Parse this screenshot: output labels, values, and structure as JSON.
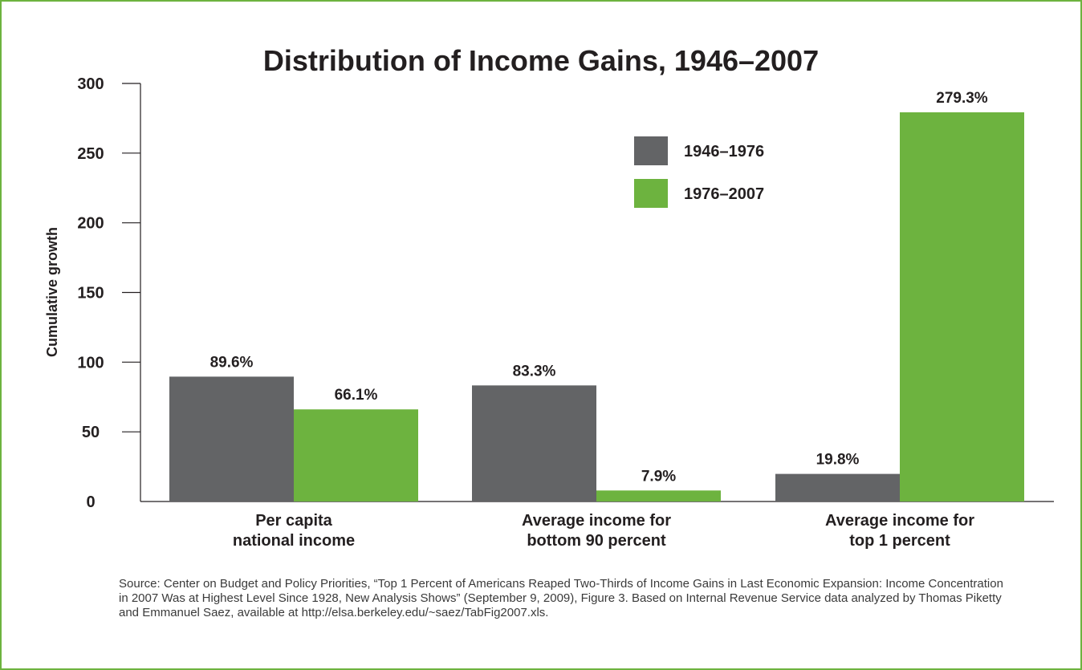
{
  "chart_data": {
    "type": "bar",
    "title": "Distribution of Income Gains, 1946–2007",
    "ylabel": "Cumulative growth",
    "xlabel": "",
    "ylim": [
      0,
      300
    ],
    "yticks": [
      0,
      50,
      100,
      150,
      200,
      250,
      300
    ],
    "categories": [
      [
        "Per capita",
        "national income"
      ],
      [
        "Average income for",
        "bottom 90 percent"
      ],
      [
        "Average income for",
        "top 1 percent"
      ]
    ],
    "series": [
      {
        "name": "1946–1976",
        "color": "#636466",
        "values": [
          89.6,
          83.3,
          19.8
        ],
        "labels": [
          "89.6%",
          "83.3%",
          "19.8%"
        ]
      },
      {
        "name": "1976–2007",
        "color": "#6db33f",
        "values": [
          66.1,
          7.9,
          279.3
        ],
        "labels": [
          "66.1%",
          "7.9%",
          "279.3%"
        ]
      }
    ],
    "legend_position": "top-right",
    "grid": false
  },
  "source": "Source: Center on Budget and Policy Priorities, “Top 1 Percent of Americans Reaped Two-Thirds of Income Gains in Last Economic Expansion: Income Concentration in 2007 Was at Highest Level Since 1928, New Analysis Shows” (September 9, 2009), Figure 3. Based on Internal Revenue Service data analyzed by Thomas Piketty and Emmanuel Saez, available at http://elsa.berkeley.edu/~saez/TabFig2007.xls.",
  "colors": {
    "frame": "#6db33f",
    "axis": "#231f20"
  }
}
